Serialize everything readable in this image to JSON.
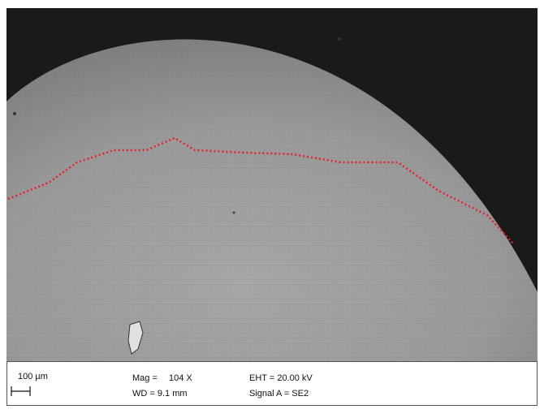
{
  "info_bar": {
    "scale": "100 µm",
    "mag_label": "Mag =",
    "mag_value": "104 X",
    "wd": "WD = 9.1 mm",
    "eht": "EHT = 20.00 kV",
    "signal": "Signal A = SE2"
  }
}
